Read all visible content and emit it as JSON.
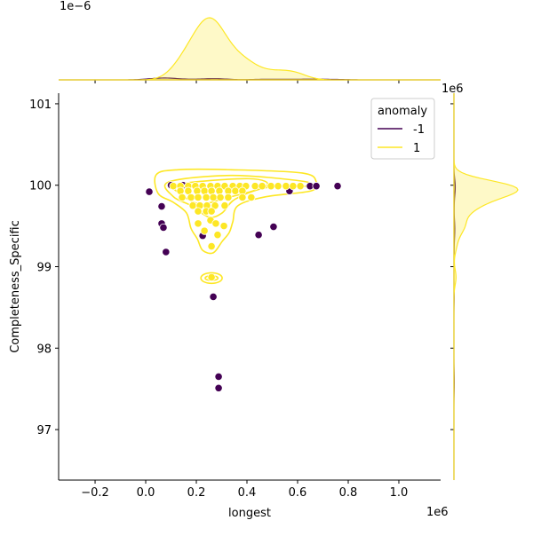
{
  "chart_data": {
    "type": "scatter",
    "kind": "jointplot with KDE contours and marginal KDEs",
    "xlabel": "longest",
    "ylabel": "Completeness_Specific",
    "x_offset_label": "1e6",
    "y_offset_label_right": "1e6",
    "top_marginal_offset_label": "1e−6",
    "xlim": [
      -0.344,
      1.165
    ],
    "ylim": [
      96.38,
      101.13
    ],
    "xticks": [
      -0.2,
      0.0,
      0.2,
      0.4,
      0.6,
      0.8,
      1.0
    ],
    "xtick_labels": [
      "−0.2",
      "0.0",
      "0.2",
      "0.4",
      "0.6",
      "0.8",
      "1.0"
    ],
    "yticks": [
      97,
      98,
      99,
      100,
      101
    ],
    "ytick_labels": [
      "97",
      "98",
      "99",
      "100",
      "101"
    ],
    "legend": {
      "title": "anomaly",
      "placement": "top-right",
      "entries": [
        {
          "label": "-1",
          "color": "#440154"
        },
        {
          "label": "1",
          "color": "#fde725"
        }
      ]
    },
    "series": [
      {
        "name": "-1",
        "color": "#440154",
        "points": [
          [
            0.014,
            99.92
          ],
          [
            0.063,
            99.74
          ],
          [
            0.063,
            99.53
          ],
          [
            0.07,
            99.48
          ],
          [
            0.08,
            99.18
          ],
          [
            0.225,
            99.38
          ],
          [
            0.267,
            98.63
          ],
          [
            0.288,
            97.65
          ],
          [
            0.288,
            97.51
          ],
          [
            0.446,
            99.39
          ],
          [
            0.505,
            99.49
          ],
          [
            0.568,
            99.93
          ],
          [
            0.649,
            99.99
          ],
          [
            0.674,
            99.99
          ],
          [
            0.758,
            99.99
          ],
          [
            0.1,
            100.0
          ],
          [
            0.147,
            100.0
          ]
        ]
      },
      {
        "name": "1",
        "color": "#fde725",
        "points": [
          [
            0.109,
            99.99
          ],
          [
            0.137,
            99.99
          ],
          [
            0.168,
            99.99
          ],
          [
            0.196,
            99.99
          ],
          [
            0.225,
            99.99
          ],
          [
            0.256,
            99.99
          ],
          [
            0.284,
            99.99
          ],
          [
            0.312,
            99.99
          ],
          [
            0.344,
            99.99
          ],
          [
            0.372,
            99.99
          ],
          [
            0.396,
            99.99
          ],
          [
            0.432,
            99.99
          ],
          [
            0.46,
            99.99
          ],
          [
            0.495,
            99.99
          ],
          [
            0.523,
            99.99
          ],
          [
            0.554,
            99.99
          ],
          [
            0.582,
            99.99
          ],
          [
            0.611,
            99.99
          ],
          [
            0.137,
            99.93
          ],
          [
            0.168,
            99.93
          ],
          [
            0.203,
            99.93
          ],
          [
            0.232,
            99.93
          ],
          [
            0.26,
            99.93
          ],
          [
            0.291,
            99.93
          ],
          [
            0.326,
            99.93
          ],
          [
            0.354,
            99.93
          ],
          [
            0.382,
            99.93
          ],
          [
            0.144,
            99.85
          ],
          [
            0.179,
            99.85
          ],
          [
            0.207,
            99.85
          ],
          [
            0.239,
            99.85
          ],
          [
            0.267,
            99.85
          ],
          [
            0.295,
            99.85
          ],
          [
            0.326,
            99.85
          ],
          [
            0.382,
            99.85
          ],
          [
            0.417,
            99.85
          ],
          [
            0.186,
            99.75
          ],
          [
            0.214,
            99.75
          ],
          [
            0.242,
            99.75
          ],
          [
            0.274,
            99.75
          ],
          [
            0.312,
            99.75
          ],
          [
            0.207,
            99.68
          ],
          [
            0.239,
            99.68
          ],
          [
            0.26,
            99.68
          ],
          [
            0.256,
            99.57
          ],
          [
            0.207,
            99.53
          ],
          [
            0.277,
            99.53
          ],
          [
            0.309,
            99.5
          ],
          [
            0.232,
            99.44
          ],
          [
            0.284,
            99.39
          ],
          [
            0.26,
            99.25
          ],
          [
            0.26,
            98.87
          ]
        ]
      }
    ],
    "contours_class_1": [
      [
        [
          0.042,
          100.13
        ],
        [
          0.126,
          100.19
        ],
        [
          0.337,
          100.19
        ],
        [
          0.618,
          100.15
        ],
        [
          0.674,
          100.04
        ],
        [
          0.653,
          99.93
        ],
        [
          0.477,
          99.86
        ],
        [
          0.365,
          99.75
        ],
        [
          0.344,
          99.55
        ],
        [
          0.33,
          99.42
        ],
        [
          0.302,
          99.31
        ],
        [
          0.267,
          99.17
        ],
        [
          0.225,
          99.2
        ],
        [
          0.204,
          99.34
        ],
        [
          0.179,
          99.47
        ],
        [
          0.161,
          99.66
        ],
        [
          0.109,
          99.79
        ],
        [
          0.049,
          99.9
        ]
      ],
      [
        [
          0.091,
          100.04
        ],
        [
          0.337,
          100.12
        ],
        [
          0.618,
          100.05
        ],
        [
          0.635,
          99.99
        ],
        [
          0.477,
          99.97
        ],
        [
          0.354,
          99.83
        ],
        [
          0.302,
          99.66
        ],
        [
          0.249,
          99.61
        ],
        [
          0.179,
          99.75
        ],
        [
          0.109,
          99.86
        ]
      ],
      [
        [
          0.126,
          100.01
        ],
        [
          0.407,
          100.08
        ],
        [
          0.477,
          99.99
        ],
        [
          0.302,
          99.83
        ],
        [
          0.214,
          99.77
        ],
        [
          0.144,
          99.88
        ]
      ]
    ],
    "contour_islands_class_1": [
      {
        "center": [
          0.26,
          98.86
        ],
        "rx": 0.042,
        "ry": 0.065
      }
    ]
  }
}
